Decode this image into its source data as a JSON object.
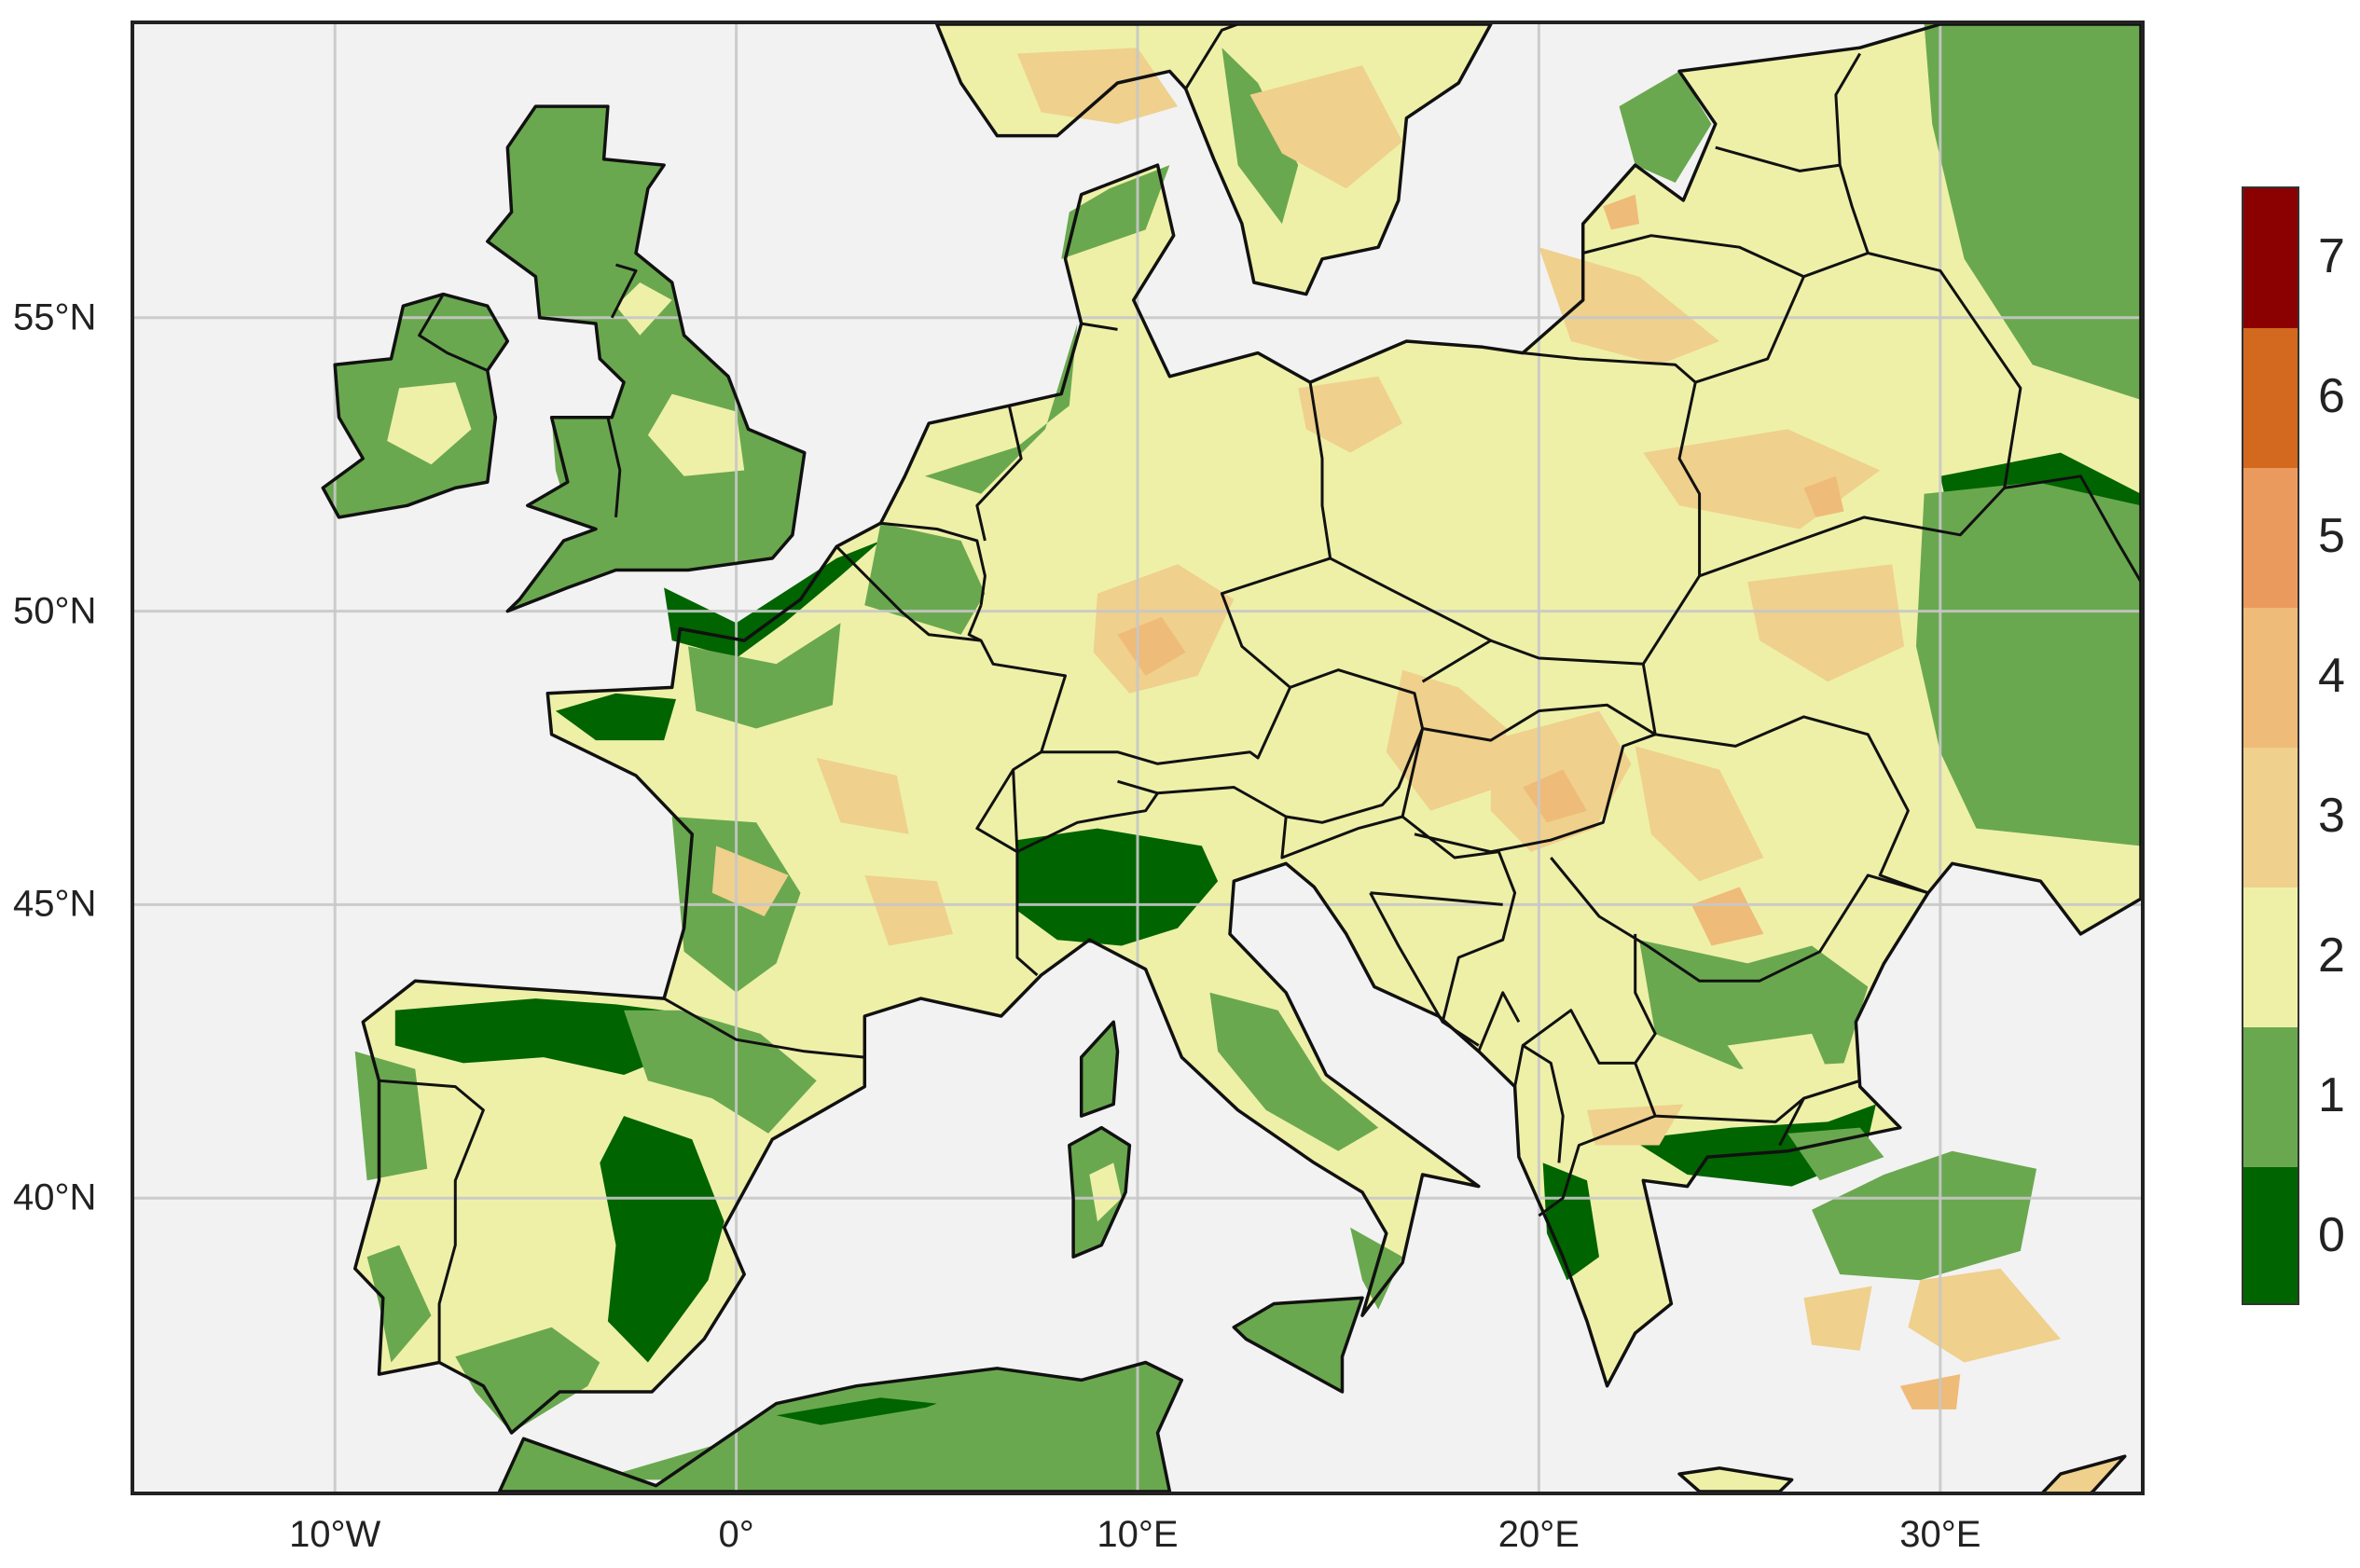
{
  "map": {
    "lat_ticks": [
      {
        "value": 55,
        "label": "55°N"
      },
      {
        "value": 50,
        "label": "50°N"
      },
      {
        "value": 45,
        "label": "45°N"
      },
      {
        "value": 40,
        "label": "40°N"
      }
    ],
    "lon_ticks": [
      {
        "value": -10,
        "label": "10°W"
      },
      {
        "value": 0,
        "label": "0°"
      },
      {
        "value": 10,
        "label": "10°E"
      },
      {
        "value": 20,
        "label": "20°E"
      },
      {
        "value": 30,
        "label": "30°E"
      }
    ],
    "extent": {
      "lon": [
        -15,
        35
      ],
      "lat": [
        35,
        60
      ]
    },
    "grid": true,
    "colors": {
      "sea": "#f2f2f2",
      "border": "#111111",
      "gridline": "#c8c8c8"
    }
  },
  "colorbar": {
    "labels": [
      "0",
      "1",
      "2",
      "3",
      "4",
      "5",
      "6",
      "7"
    ],
    "range": [
      -0.5,
      7.5
    ],
    "bins": [
      {
        "from": -0.5,
        "to": 0.5,
        "color": "#006400"
      },
      {
        "from": 0.5,
        "to": 1.5,
        "color": "#6aa84f"
      },
      {
        "from": 1.5,
        "to": 2.5,
        "color": "#eef0a8"
      },
      {
        "from": 2.5,
        "to": 3.5,
        "color": "#efd08c"
      },
      {
        "from": 3.5,
        "to": 4.5,
        "color": "#efbb78"
      },
      {
        "from": 4.5,
        "to": 5.5,
        "color": "#eb9a5e"
      },
      {
        "from": 5.5,
        "to": 6.5,
        "color": "#d2691e"
      },
      {
        "from": 6.5,
        "to": 7.5,
        "color": "#8b0000"
      }
    ]
  }
}
